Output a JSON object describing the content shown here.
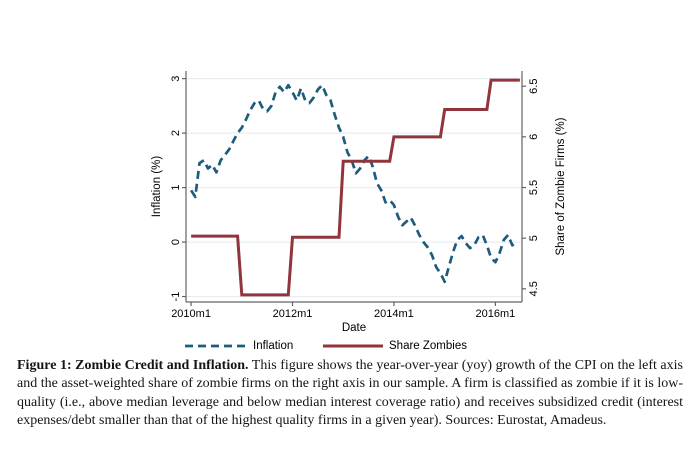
{
  "chart_data": {
    "type": "line",
    "title": "",
    "xlabel": "Date",
    "ylabel_left": "Inflation (%)",
    "ylabel_right": "Share of Zombie Firms (%)",
    "grid": true,
    "legend_position": "bottom",
    "colors": {
      "inflation_line": "#1E5C7D",
      "zombie_line": "#90353B",
      "gridline": "#e3ebf0",
      "axis": "#636363"
    },
    "axes": {
      "x_ticks": [
        {
          "label": "2010m1",
          "m": 0
        },
        {
          "label": "2012m1",
          "m": 24
        },
        {
          "label": "2014m1",
          "m": 48
        },
        {
          "label": "2016m1",
          "m": 72
        }
      ],
      "y_left_ticks": [
        -1,
        0,
        1,
        2,
        3
      ],
      "y_right_ticks": [
        4.5,
        5,
        5.5,
        6,
        6.5
      ],
      "xlim_months": [
        -1.2,
        78.3
      ],
      "ylim_left": [
        -1.1,
        3.14
      ],
      "ylim_right": [
        4.37,
        6.65
      ]
    },
    "series": [
      {
        "name": "Inflation",
        "axis": "left",
        "line": "dashed",
        "color": "#1E5C7D",
        "x_start_month": 0,
        "x_step": 1,
        "x_start_label": "2010m1",
        "x_end_label": "2016m6",
        "values": [
          0.95,
          0.83,
          1.45,
          1.5,
          1.35,
          1.42,
          1.28,
          1.5,
          1.6,
          1.7,
          1.85,
          2.0,
          2.1,
          2.25,
          2.42,
          2.55,
          2.6,
          2.45,
          2.4,
          2.5,
          2.75,
          2.85,
          2.75,
          2.88,
          2.75,
          2.6,
          2.82,
          2.6,
          2.55,
          2.65,
          2.8,
          2.88,
          2.7,
          2.6,
          2.33,
          2.1,
          1.93,
          1.65,
          1.5,
          1.26,
          1.35,
          1.5,
          1.58,
          1.38,
          1.08,
          0.95,
          0.73,
          0.77,
          0.68,
          0.46,
          0.31,
          0.38,
          0.45,
          0.3,
          0.13,
          0.0,
          -0.1,
          -0.24,
          -0.46,
          -0.57,
          -0.73,
          -0.45,
          -0.18,
          0.04,
          0.11,
          -0.02,
          -0.11,
          -0.06,
          0.09,
          0.13,
          -0.06,
          -0.29,
          -0.37,
          -0.2,
          0.04,
          0.13,
          -0.06,
          0.0
        ]
      },
      {
        "name": "Share Zombies",
        "axis": "right",
        "line": "solid",
        "color": "#90353B",
        "points": [
          [
            0,
            5.02
          ],
          [
            11,
            5.02
          ],
          [
            12,
            4.44
          ],
          [
            23,
            4.44
          ],
          [
            24,
            5.01
          ],
          [
            35,
            5.01
          ],
          [
            36,
            5.76
          ],
          [
            47,
            5.76
          ],
          [
            48,
            6.0
          ],
          [
            59,
            6.0
          ],
          [
            60,
            6.27
          ],
          [
            70,
            6.27
          ],
          [
            71,
            6.56
          ],
          [
            77.8,
            6.56
          ]
        ]
      }
    ]
  },
  "legend": {
    "items": [
      {
        "label": "Inflation"
      },
      {
        "label": "Share Zombies"
      }
    ]
  },
  "caption": {
    "heading": "Figure 1:  Zombie Credit and Inflation.",
    "body": "This figure shows the year-over-year (yoy) growth of the CPI on the left axis and the asset-weighted share of zombie firms on the right axis in our sample. A firm is classified as zombie if it is low-quality (i.e., above median leverage and below median interest coverage ratio) and receives subsidized credit (interest expenses/debt smaller than that of the highest quality firms in a given year). Sources: Eurostat, Amadeus."
  }
}
